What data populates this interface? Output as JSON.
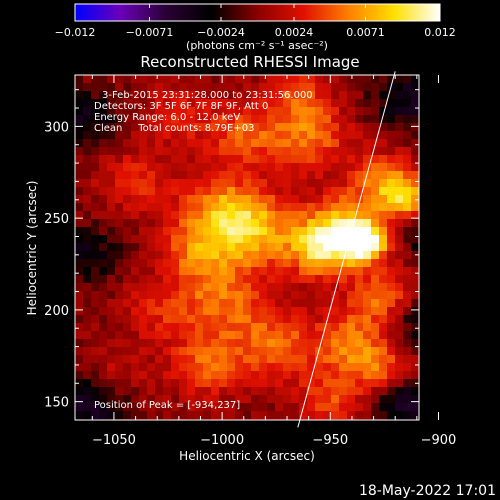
{
  "chart_data": {
    "type": "heatmap",
    "title": "Reconstructed RHESSI Image",
    "xlabel": "Heliocentric X (arcsec)",
    "ylabel": "Heliocentric Y (arcsec)",
    "xlim": [
      -1068,
      -909
    ],
    "ylim": [
      140,
      328
    ],
    "x_ticks": [
      -1050,
      -1000,
      -950,
      -900
    ],
    "y_ticks": [
      150,
      200,
      250,
      300
    ],
    "x_tick_labels": [
      "−1050",
      "−1000",
      "−950",
      "−900"
    ],
    "y_tick_labels": [
      "150",
      "200",
      "250",
      "300"
    ],
    "colorbar": {
      "range": [
        -0.012,
        0.012
      ],
      "ticks": [
        -0.012,
        -0.0071,
        -0.0024,
        0.0024,
        0.0071,
        0.012
      ],
      "tick_labels": [
        "−0.012",
        "−0.0071",
        "−0.0024",
        "0.0024",
        "0.0071",
        "0.012"
      ],
      "unit_label": "(photons cm⁻² s⁻¹ asec⁻²)",
      "colors": [
        "#0000ff",
        "#6a00b8",
        "#2a0033",
        "#000000",
        "#8a0000",
        "#e01000",
        "#ff8000",
        "#ffe000",
        "#ffffff"
      ]
    },
    "info_lines": [
      "3-Feb-2015 23:31:28.000 to 23:31:56.000",
      "Detectors: 3F 5F 6F 7F 8F 9F, Att 0",
      "Energy Range: 6.0 - 12.0 keV",
      "Clean     Total counts: 8.79E+03"
    ],
    "peak_label": "Position of Peak = [-934,237]",
    "peak": [
      -934,
      237
    ],
    "peak_value": 0.012,
    "limb_line": [
      [
        -965,
        136
      ],
      [
        -920,
        330
      ]
    ],
    "blobs": [
      {
        "x": -934,
        "y": 237,
        "v": 0.0115,
        "s": 7
      },
      {
        "x": -945,
        "y": 244,
        "v": 0.0085,
        "s": 12
      },
      {
        "x": -955,
        "y": 232,
        "v": 0.007,
        "s": 10
      },
      {
        "x": -985,
        "y": 242,
        "v": 0.007,
        "s": 14
      },
      {
        "x": -1000,
        "y": 255,
        "v": 0.006,
        "s": 13
      },
      {
        "x": -1012,
        "y": 232,
        "v": 0.005,
        "s": 12
      },
      {
        "x": -1000,
        "y": 205,
        "v": 0.005,
        "s": 14
      },
      {
        "x": -1008,
        "y": 170,
        "v": 0.005,
        "s": 12
      },
      {
        "x": -975,
        "y": 180,
        "v": 0.005,
        "s": 14
      },
      {
        "x": -960,
        "y": 295,
        "v": 0.0055,
        "s": 13
      },
      {
        "x": -965,
        "y": 318,
        "v": 0.0035,
        "s": 10
      },
      {
        "x": -990,
        "y": 295,
        "v": 0.0045,
        "s": 12
      },
      {
        "x": -925,
        "y": 270,
        "v": 0.006,
        "s": 11
      },
      {
        "x": -915,
        "y": 260,
        "v": 0.0065,
        "s": 8
      },
      {
        "x": -925,
        "y": 205,
        "v": 0.006,
        "s": 12
      },
      {
        "x": -940,
        "y": 180,
        "v": 0.0055,
        "s": 12
      },
      {
        "x": -925,
        "y": 165,
        "v": 0.0045,
        "s": 10
      },
      {
        "x": -950,
        "y": 150,
        "v": 0.004,
        "s": 10
      },
      {
        "x": -1040,
        "y": 270,
        "v": 0.0035,
        "s": 12
      },
      {
        "x": -1030,
        "y": 200,
        "v": 0.003,
        "s": 12
      },
      {
        "x": -1050,
        "y": 165,
        "v": 0.0025,
        "s": 11
      },
      {
        "x": -1020,
        "y": 305,
        "v": 0.003,
        "s": 12
      },
      {
        "x": -1062,
        "y": 305,
        "v": -0.004,
        "s": 10
      },
      {
        "x": -1062,
        "y": 230,
        "v": -0.0035,
        "s": 11
      },
      {
        "x": -1060,
        "y": 150,
        "v": -0.005,
        "s": 12
      },
      {
        "x": -915,
        "y": 315,
        "v": -0.0045,
        "s": 11
      },
      {
        "x": -912,
        "y": 195,
        "v": -0.0045,
        "s": 11
      },
      {
        "x": -915,
        "y": 150,
        "v": -0.006,
        "s": 11
      },
      {
        "x": -905,
        "y": 240,
        "v": -0.003,
        "s": 10
      }
    ]
  },
  "footer": {
    "timestamp": "18-May-2022 17:01"
  }
}
